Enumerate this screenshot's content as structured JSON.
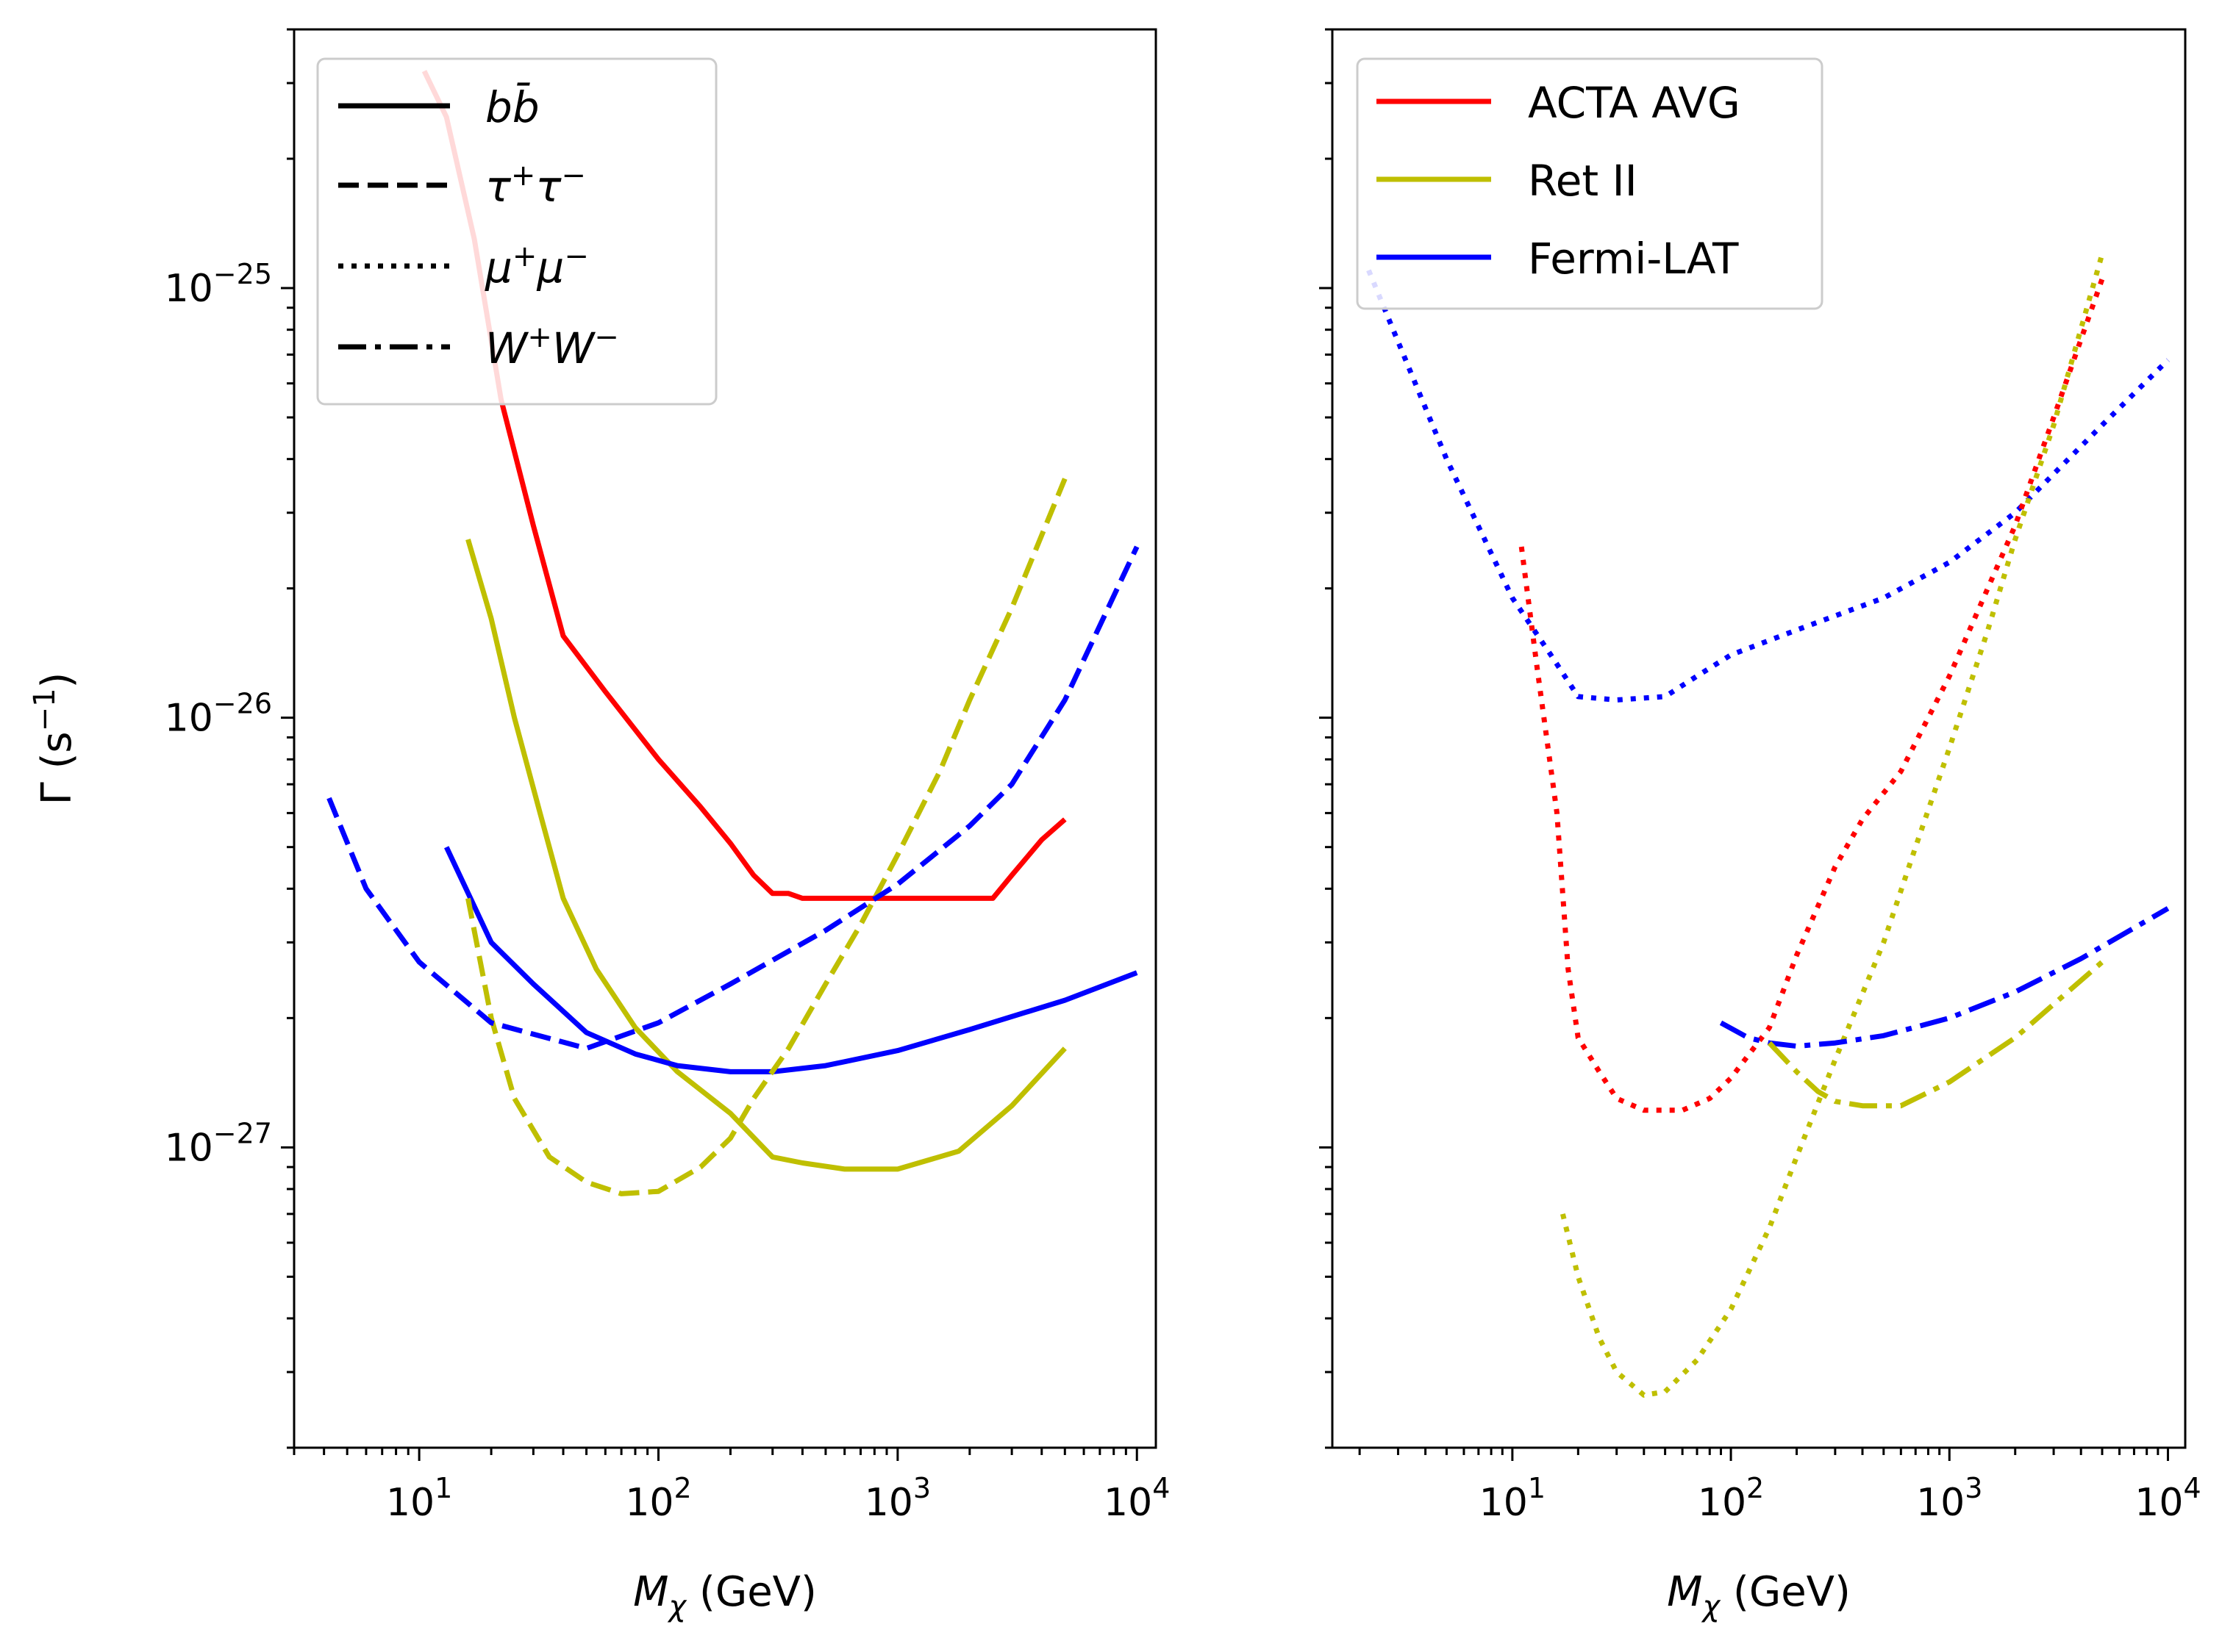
{
  "figure": {
    "ylabel": "Γ (s⁻¹)",
    "panels": [
      "left",
      "right"
    ]
  },
  "colors": {
    "ACTA AVG": "#ff0000",
    "Ret II": "#bfbf00",
    "Fermi-LAT": "#0000ff"
  },
  "chart_data": [
    {
      "type": "line",
      "title": "",
      "xlabel": "Mχ (GeV)",
      "ylabel": "Γ (s⁻¹)",
      "xscale": "log",
      "yscale": "log",
      "xlim": [
        3,
        12000
      ],
      "ylim": [
        2e-28,
        4e-25
      ],
      "xticks": [
        {
          "base": "10",
          "exp": "1"
        },
        {
          "base": "10",
          "exp": "2"
        },
        {
          "base": "10",
          "exp": "3"
        },
        {
          "base": "10",
          "exp": "4"
        }
      ],
      "yticks": [
        {
          "base": "10",
          "exp": "−25"
        },
        {
          "base": "10",
          "exp": "−26"
        },
        {
          "base": "10",
          "exp": "−27"
        }
      ],
      "legend": {
        "location": "upper-left",
        "entries": [
          {
            "label": "bb̄",
            "style": "solid"
          },
          {
            "label": "τ⁺τ⁻",
            "style": "dashed"
          },
          {
            "label": "μ⁺μ⁻",
            "style": "dotted"
          },
          {
            "label": "W⁺W⁻",
            "style": "dashdot"
          }
        ]
      },
      "series": [
        {
          "name": "ACTA AVG bb̄",
          "color": "ACTA AVG",
          "style": "solid",
          "x": [
            10.5,
            13,
            17,
            22,
            30,
            40,
            60,
            100,
            150,
            200,
            250,
            300,
            350,
            400,
            600,
            1000,
            2000,
            2500,
            3000,
            4000,
            5000
          ],
          "y": [
            3.2e-25,
            2.5e-25,
            1.3e-25,
            5.5e-26,
            2.8e-26,
            1.55e-26,
            1.15e-26,
            8e-27,
            6.2e-27,
            5.1e-27,
            4.3e-27,
            3.9e-27,
            3.9e-27,
            3.8e-27,
            3.8e-27,
            3.8e-27,
            3.8e-27,
            3.8e-27,
            4.3e-27,
            5.2e-27,
            5.8e-27
          ]
        },
        {
          "name": "Ret II bb̄",
          "color": "Ret II",
          "style": "solid",
          "x": [
            16,
            20,
            25,
            32,
            40,
            55,
            80,
            120,
            200,
            300,
            400,
            600,
            1000,
            1800,
            3000,
            5000
          ],
          "y": [
            2.6e-26,
            1.7e-26,
            1e-26,
            6e-27,
            3.8e-27,
            2.6e-27,
            1.9e-27,
            1.5e-27,
            1.2e-27,
            9.5e-28,
            9.2e-28,
            8.9e-28,
            8.9e-28,
            9.8e-28,
            1.25e-27,
            1.7e-27
          ]
        },
        {
          "name": "Fermi-LAT bb̄",
          "color": "Fermi-LAT",
          "style": "solid",
          "x": [
            13,
            20,
            30,
            50,
            80,
            120,
            200,
            300,
            500,
            1000,
            2000,
            5000,
            10000
          ],
          "y": [
            5e-27,
            3e-27,
            2.4e-27,
            1.85e-27,
            1.65e-27,
            1.55e-27,
            1.5e-27,
            1.5e-27,
            1.55e-27,
            1.68e-27,
            1.88e-27,
            2.2e-27,
            2.55e-27
          ]
        },
        {
          "name": "Ret II τ⁺τ⁻",
          "color": "Ret II",
          "style": "dashed",
          "x": [
            16,
            20,
            25,
            35,
            50,
            70,
            100,
            150,
            200,
            250,
            350,
            500,
            700,
            1000,
            1500,
            2000,
            3000,
            5000
          ],
          "y": [
            3.8e-27,
            2e-27,
            1.3e-27,
            9.5e-28,
            8.3e-28,
            7.8e-28,
            7.9e-28,
            9e-28,
            1.05e-27,
            1.3e-27,
            1.7e-27,
            2.4e-27,
            3.3e-27,
            4.8e-27,
            7.5e-27,
            1.1e-26,
            1.8e-26,
            3.6e-26
          ]
        },
        {
          "name": "Fermi-LAT τ⁺τ⁻",
          "color": "Fermi-LAT",
          "style": "dashed",
          "x": [
            4.2,
            6,
            10,
            20,
            50,
            100,
            200,
            500,
            1000,
            2000,
            3000,
            5000,
            10000
          ],
          "y": [
            6.5e-27,
            4e-27,
            2.7e-27,
            1.95e-27,
            1.7e-27,
            1.95e-27,
            2.4e-27,
            3.2e-27,
            4.1e-27,
            5.6e-27,
            7e-27,
            1.1e-26,
            2.5e-26
          ]
        }
      ]
    },
    {
      "type": "line",
      "title": "",
      "xlabel": "Mχ (GeV)",
      "ylabel": "",
      "xscale": "log",
      "yscale": "log",
      "xlim": [
        1.5,
        12000
      ],
      "ylim": [
        2e-28,
        4e-25
      ],
      "xticks": [
        {
          "base": "10",
          "exp": "1"
        },
        {
          "base": "10",
          "exp": "2"
        },
        {
          "base": "10",
          "exp": "3"
        },
        {
          "base": "10",
          "exp": "4"
        }
      ],
      "legend": {
        "location": "upper-left",
        "entries": [
          {
            "label": "ACTA AVG",
            "color": "ACTA AVG"
          },
          {
            "label": "Ret II",
            "color": "Ret II"
          },
          {
            "label": "Fermi-LAT",
            "color": "Fermi-LAT"
          }
        ]
      },
      "series": [
        {
          "name": "Fermi-LAT μ⁺μ⁻",
          "color": "Fermi-LAT",
          "style": "dotted",
          "x": [
            2.2,
            3,
            5,
            10,
            15,
            20,
            30,
            50,
            70,
            100,
            200,
            500,
            1000,
            2000,
            5000,
            10000
          ],
          "y": [
            1.1e-25,
            7.5e-26,
            4e-26,
            1.9e-26,
            1.4e-26,
            1.12e-26,
            1.1e-26,
            1.12e-26,
            1.25e-26,
            1.4e-26,
            1.6e-26,
            1.9e-26,
            2.3e-26,
            3e-26,
            4.8e-26,
            6.8e-26
          ]
        },
        {
          "name": "ACTA AVG μ⁺μ⁻",
          "color": "ACTA AVG",
          "style": "dotted",
          "x": [
            11,
            13,
            16,
            18,
            20,
            25,
            30,
            40,
            60,
            80,
            100,
            150,
            200,
            300,
            400,
            600,
            1000,
            2000,
            3000,
            5000
          ],
          "y": [
            2.5e-26,
            1.3e-26,
            6e-27,
            2.6e-27,
            1.8e-27,
            1.5e-27,
            1.3e-27,
            1.22e-27,
            1.22e-27,
            1.3e-27,
            1.45e-27,
            1.9e-27,
            2.8e-27,
            4.5e-27,
            5.8e-27,
            7.5e-27,
            1.25e-26,
            2.8e-26,
            5e-26,
            1.05e-25
          ]
        },
        {
          "name": "Ret II μ⁺μ⁻",
          "color": "Ret II",
          "style": "dotted",
          "x": [
            17,
            20,
            25,
            30,
            40,
            50,
            70,
            100,
            150,
            200,
            300,
            500,
            700,
            1000,
            1500,
            2000,
            3000,
            5000
          ],
          "y": [
            7e-28,
            5e-28,
            3.6e-28,
            3e-28,
            2.65e-28,
            2.7e-28,
            3.2e-28,
            4.2e-28,
            6.5e-28,
            9.5e-28,
            1.6e-27,
            3e-27,
            5e-27,
            8.5e-27,
            1.6e-26,
            2.6e-26,
            4.8e-26,
            1.2e-25
          ]
        },
        {
          "name": "Fermi-LAT W⁺W⁻",
          "color": "Fermi-LAT",
          "style": "dashdot",
          "x": [
            90,
            120,
            150,
            200,
            300,
            500,
            1000,
            2000,
            4000,
            10000
          ],
          "y": [
            1.95e-27,
            1.8e-27,
            1.75e-27,
            1.72e-27,
            1.75e-27,
            1.82e-27,
            2e-27,
            2.3e-27,
            2.75e-27,
            3.6e-27
          ]
        },
        {
          "name": "Ret II W⁺W⁻",
          "color": "Ret II",
          "style": "dashdot",
          "x": [
            150,
            200,
            250,
            300,
            400,
            600,
            1000,
            2000,
            5000
          ],
          "y": [
            1.75e-27,
            1.5e-27,
            1.35e-27,
            1.28e-27,
            1.25e-27,
            1.25e-27,
            1.42e-27,
            1.8e-27,
            2.7e-27
          ]
        }
      ]
    }
  ]
}
